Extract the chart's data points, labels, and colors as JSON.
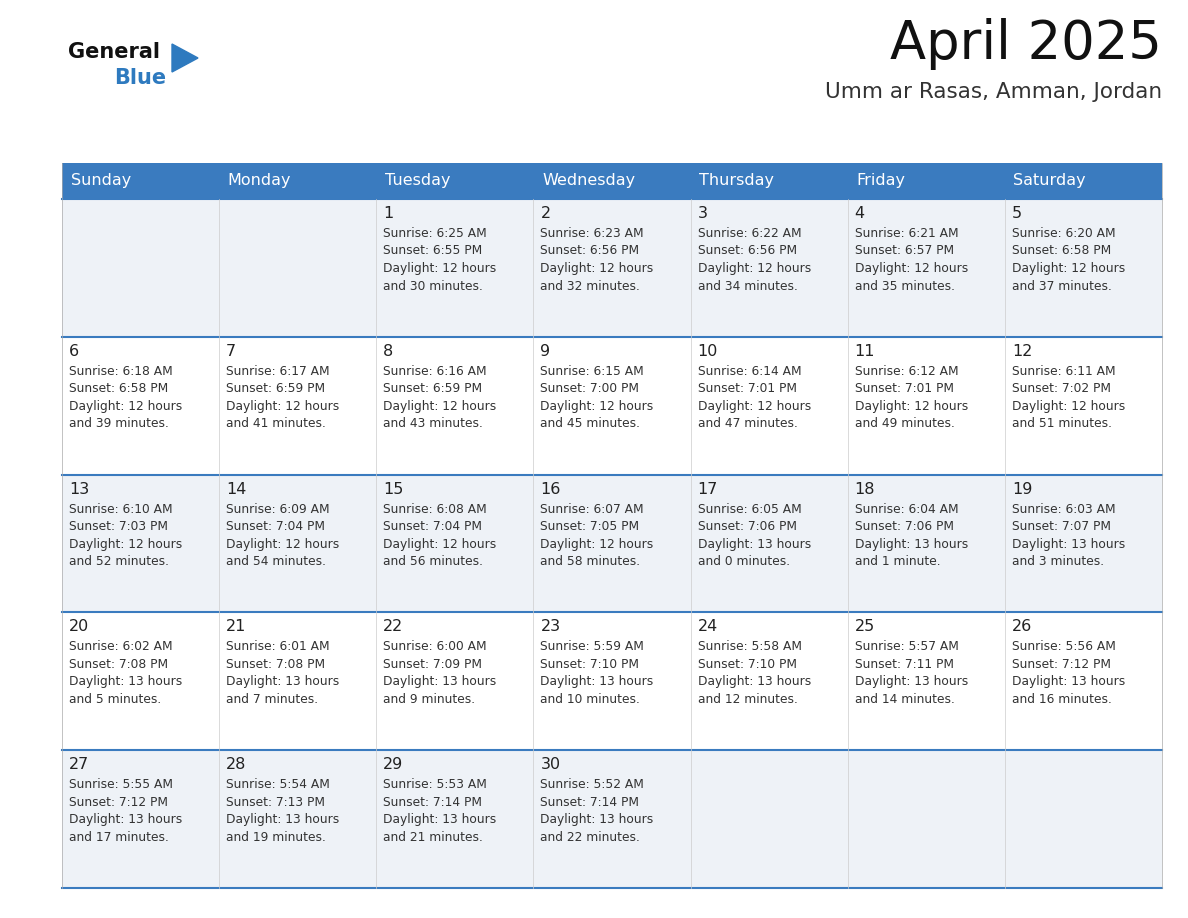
{
  "title": "April 2025",
  "subtitle": "Umm ar Rasas, Amman, Jordan",
  "header_bg_color": "#3a7bbf",
  "header_text_color": "#ffffff",
  "weekdays": [
    "Sunday",
    "Monday",
    "Tuesday",
    "Wednesday",
    "Thursday",
    "Friday",
    "Saturday"
  ],
  "row_odd_bg": "#eef2f7",
  "row_even_bg": "#ffffff",
  "cell_border_color": "#3a7bbf",
  "day_num_color": "#222222",
  "info_text_color": "#333333",
  "title_color": "#111111",
  "subtitle_color": "#333333",
  "logo_general_color": "#111111",
  "logo_blue_color": "#2e7abf",
  "calendar_data": [
    [
      {
        "day": null,
        "sunrise": null,
        "sunset": null,
        "daylight": null
      },
      {
        "day": null,
        "sunrise": null,
        "sunset": null,
        "daylight": null
      },
      {
        "day": 1,
        "sunrise": "6:25 AM",
        "sunset": "6:55 PM",
        "daylight": "12 hours\nand 30 minutes."
      },
      {
        "day": 2,
        "sunrise": "6:23 AM",
        "sunset": "6:56 PM",
        "daylight": "12 hours\nand 32 minutes."
      },
      {
        "day": 3,
        "sunrise": "6:22 AM",
        "sunset": "6:56 PM",
        "daylight": "12 hours\nand 34 minutes."
      },
      {
        "day": 4,
        "sunrise": "6:21 AM",
        "sunset": "6:57 PM",
        "daylight": "12 hours\nand 35 minutes."
      },
      {
        "day": 5,
        "sunrise": "6:20 AM",
        "sunset": "6:58 PM",
        "daylight": "12 hours\nand 37 minutes."
      }
    ],
    [
      {
        "day": 6,
        "sunrise": "6:18 AM",
        "sunset": "6:58 PM",
        "daylight": "12 hours\nand 39 minutes."
      },
      {
        "day": 7,
        "sunrise": "6:17 AM",
        "sunset": "6:59 PM",
        "daylight": "12 hours\nand 41 minutes."
      },
      {
        "day": 8,
        "sunrise": "6:16 AM",
        "sunset": "6:59 PM",
        "daylight": "12 hours\nand 43 minutes."
      },
      {
        "day": 9,
        "sunrise": "6:15 AM",
        "sunset": "7:00 PM",
        "daylight": "12 hours\nand 45 minutes."
      },
      {
        "day": 10,
        "sunrise": "6:14 AM",
        "sunset": "7:01 PM",
        "daylight": "12 hours\nand 47 minutes."
      },
      {
        "day": 11,
        "sunrise": "6:12 AM",
        "sunset": "7:01 PM",
        "daylight": "12 hours\nand 49 minutes."
      },
      {
        "day": 12,
        "sunrise": "6:11 AM",
        "sunset": "7:02 PM",
        "daylight": "12 hours\nand 51 minutes."
      }
    ],
    [
      {
        "day": 13,
        "sunrise": "6:10 AM",
        "sunset": "7:03 PM",
        "daylight": "12 hours\nand 52 minutes."
      },
      {
        "day": 14,
        "sunrise": "6:09 AM",
        "sunset": "7:04 PM",
        "daylight": "12 hours\nand 54 minutes."
      },
      {
        "day": 15,
        "sunrise": "6:08 AM",
        "sunset": "7:04 PM",
        "daylight": "12 hours\nand 56 minutes."
      },
      {
        "day": 16,
        "sunrise": "6:07 AM",
        "sunset": "7:05 PM",
        "daylight": "12 hours\nand 58 minutes."
      },
      {
        "day": 17,
        "sunrise": "6:05 AM",
        "sunset": "7:06 PM",
        "daylight": "13 hours\nand 0 minutes."
      },
      {
        "day": 18,
        "sunrise": "6:04 AM",
        "sunset": "7:06 PM",
        "daylight": "13 hours\nand 1 minute."
      },
      {
        "day": 19,
        "sunrise": "6:03 AM",
        "sunset": "7:07 PM",
        "daylight": "13 hours\nand 3 minutes."
      }
    ],
    [
      {
        "day": 20,
        "sunrise": "6:02 AM",
        "sunset": "7:08 PM",
        "daylight": "13 hours\nand 5 minutes."
      },
      {
        "day": 21,
        "sunrise": "6:01 AM",
        "sunset": "7:08 PM",
        "daylight": "13 hours\nand 7 minutes."
      },
      {
        "day": 22,
        "sunrise": "6:00 AM",
        "sunset": "7:09 PM",
        "daylight": "13 hours\nand 9 minutes."
      },
      {
        "day": 23,
        "sunrise": "5:59 AM",
        "sunset": "7:10 PM",
        "daylight": "13 hours\nand 10 minutes."
      },
      {
        "day": 24,
        "sunrise": "5:58 AM",
        "sunset": "7:10 PM",
        "daylight": "13 hours\nand 12 minutes."
      },
      {
        "day": 25,
        "sunrise": "5:57 AM",
        "sunset": "7:11 PM",
        "daylight": "13 hours\nand 14 minutes."
      },
      {
        "day": 26,
        "sunrise": "5:56 AM",
        "sunset": "7:12 PM",
        "daylight": "13 hours\nand 16 minutes."
      }
    ],
    [
      {
        "day": 27,
        "sunrise": "5:55 AM",
        "sunset": "7:12 PM",
        "daylight": "13 hours\nand 17 minutes."
      },
      {
        "day": 28,
        "sunrise": "5:54 AM",
        "sunset": "7:13 PM",
        "daylight": "13 hours\nand 19 minutes."
      },
      {
        "day": 29,
        "sunrise": "5:53 AM",
        "sunset": "7:14 PM",
        "daylight": "13 hours\nand 21 minutes."
      },
      {
        "day": 30,
        "sunrise": "5:52 AM",
        "sunset": "7:14 PM",
        "daylight": "13 hours\nand 22 minutes."
      },
      {
        "day": null,
        "sunrise": null,
        "sunset": null,
        "daylight": null
      },
      {
        "day": null,
        "sunrise": null,
        "sunset": null,
        "daylight": null
      },
      {
        "day": null,
        "sunrise": null,
        "sunset": null,
        "daylight": null
      }
    ]
  ]
}
